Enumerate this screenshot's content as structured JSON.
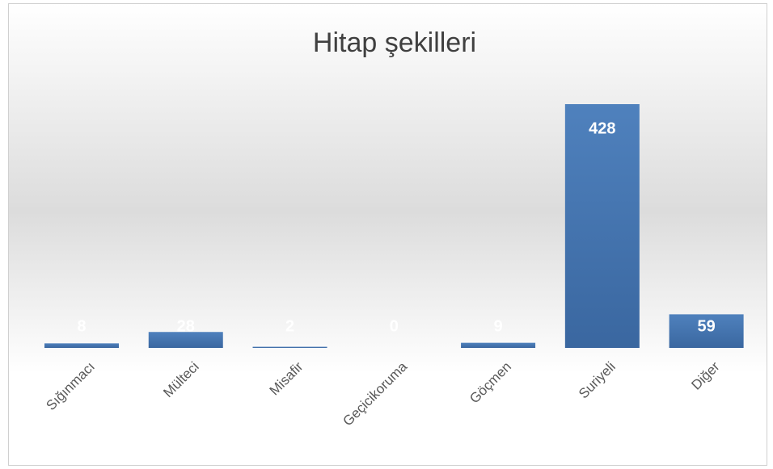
{
  "chart_data": {
    "type": "bar",
    "title": "Hitap şekilleri",
    "categories": [
      "Sığınmacı",
      "Mülteci",
      "Misafir",
      "Geçicikoruma",
      "Göçmen",
      "Suriyeli",
      "Diğer"
    ],
    "values": [
      8,
      28,
      2,
      0,
      9,
      428,
      59
    ],
    "color": "#4472c4",
    "ylim": [
      0,
      450
    ],
    "grid": false
  }
}
